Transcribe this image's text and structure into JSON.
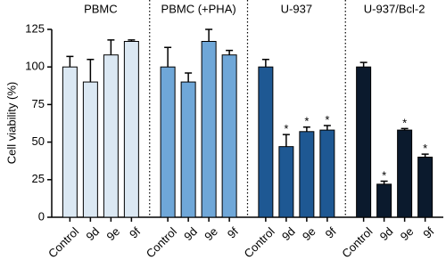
{
  "chart_data": {
    "type": "bar",
    "ylabel": "Cell viability (%)",
    "ylim": [
      0,
      125
    ],
    "yticks": [
      0,
      25,
      50,
      75,
      100,
      125
    ],
    "categories": [
      "Control",
      "9d",
      "9e",
      "9f"
    ],
    "series": [
      {
        "name": "PBMC",
        "color": "#dbe8f3",
        "values": [
          100,
          90,
          108,
          117
        ],
        "errors": [
          7,
          15,
          10,
          1
        ],
        "annotations": [
          null,
          null,
          null,
          null
        ]
      },
      {
        "name": "PBMC (+PHA)",
        "color": "#6fa7d8",
        "values": [
          100,
          90,
          117,
          108
        ],
        "errors": [
          13,
          6,
          8,
          3
        ],
        "annotations": [
          null,
          null,
          null,
          null
        ]
      },
      {
        "name": "U-937",
        "color": "#1e5893",
        "values": [
          100,
          47,
          57,
          58
        ],
        "errors": [
          5,
          8,
          3,
          3
        ],
        "annotations": [
          null,
          "*",
          "*",
          "*"
        ]
      },
      {
        "name": "U-937/Bcl-2",
        "color": "#0b1a2d",
        "values": [
          100,
          22,
          58,
          40
        ],
        "errors": [
          3,
          2,
          1,
          2
        ],
        "annotations": [
          null,
          "*",
          "*",
          "*"
        ]
      }
    ]
  }
}
